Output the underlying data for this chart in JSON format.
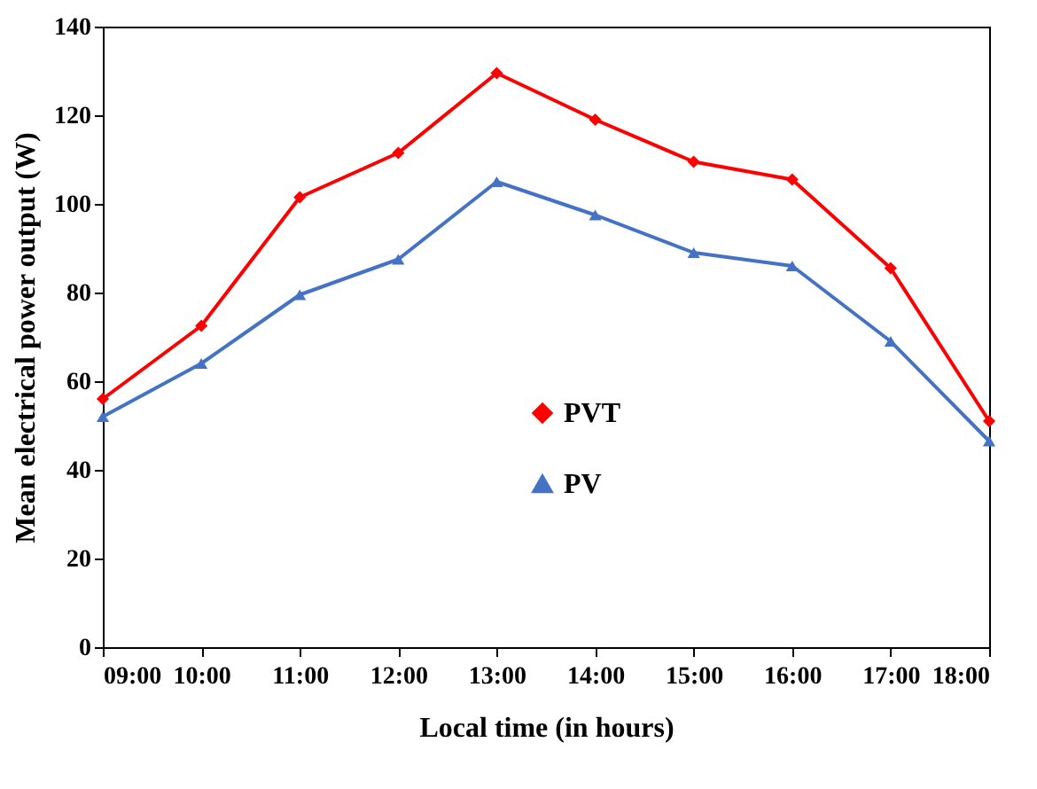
{
  "chart_data": {
    "type": "line",
    "xlabel": "Local time (in hours)",
    "ylabel": "Mean electrical power output (W)",
    "categories": [
      "09:00",
      "10:00",
      "11:00",
      "12:00",
      "13:00",
      "14:00",
      "15:00",
      "16:00",
      "17:00",
      "18:00"
    ],
    "series": [
      {
        "name": "PVT",
        "color": "#ff0000",
        "marker": "diamond",
        "values": [
          56,
          72.5,
          101.5,
          111.5,
          129.5,
          119,
          109.5,
          105.5,
          85.5,
          51
        ]
      },
      {
        "name": "PV",
        "color": "#4472c4",
        "marker": "triangle",
        "values": [
          52,
          64,
          79.5,
          87.5,
          105,
          97.5,
          89,
          86,
          69,
          46.5
        ]
      }
    ],
    "ylim": [
      0,
      140
    ],
    "yticks": [
      0,
      20,
      40,
      60,
      80,
      100,
      120,
      140
    ],
    "grid": false,
    "legend": "center",
    "line_style": "solid"
  }
}
